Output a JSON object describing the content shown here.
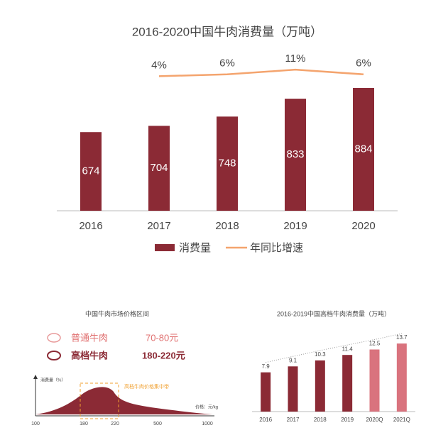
{
  "chart_data": [
    {
      "type": "combo",
      "title": "2016-2020中国牛肉消费量（万吨）",
      "categories": [
        "2016",
        "2017",
        "2018",
        "2019",
        "2020"
      ],
      "series": [
        {
          "name": "消费量",
          "type": "bar",
          "color": "#8b2a35",
          "values": [
            674,
            704,
            748,
            833,
            884
          ]
        },
        {
          "name": "年同比增速",
          "type": "line",
          "axis": "y2",
          "color": "#f4a46e",
          "values": [
            null,
            4,
            6,
            11,
            6
          ],
          "value_labels": [
            null,
            "4%",
            "6%",
            "11%",
            "6%"
          ]
        }
      ],
      "ylim": [
        300,
        1100
      ],
      "y2lim": [
        -140,
        40
      ],
      "legend": "bottom"
    },
    {
      "type": "bar",
      "title": "2016-2019中国高档牛肉消费量（万吨）",
      "categories": [
        "2016",
        "2017",
        "2018",
        "2019",
        "2020Q",
        "2021Q"
      ],
      "values": [
        7.9,
        9.1,
        10.3,
        11.4,
        12.5,
        13.7
      ],
      "colors": [
        "#8b2a35",
        "#8b2a35",
        "#8b2a35",
        "#8b2a35",
        "#d9737e",
        "#d9737e"
      ],
      "ylim": [
        0,
        20
      ]
    }
  ],
  "price_panel": {
    "title": "中国牛肉市场价格区间",
    "rows": [
      {
        "name": "普通牛肉",
        "price": "70-80元"
      },
      {
        "name": "高档牛肉",
        "price": "180-220元"
      }
    ],
    "y_label": "消费量（%）",
    "x_label": "价格：元/kg",
    "annotation": "高档牛肉价格集中带",
    "x_ticks": [
      "100",
      "180",
      "220",
      "500",
      "1000"
    ]
  }
}
